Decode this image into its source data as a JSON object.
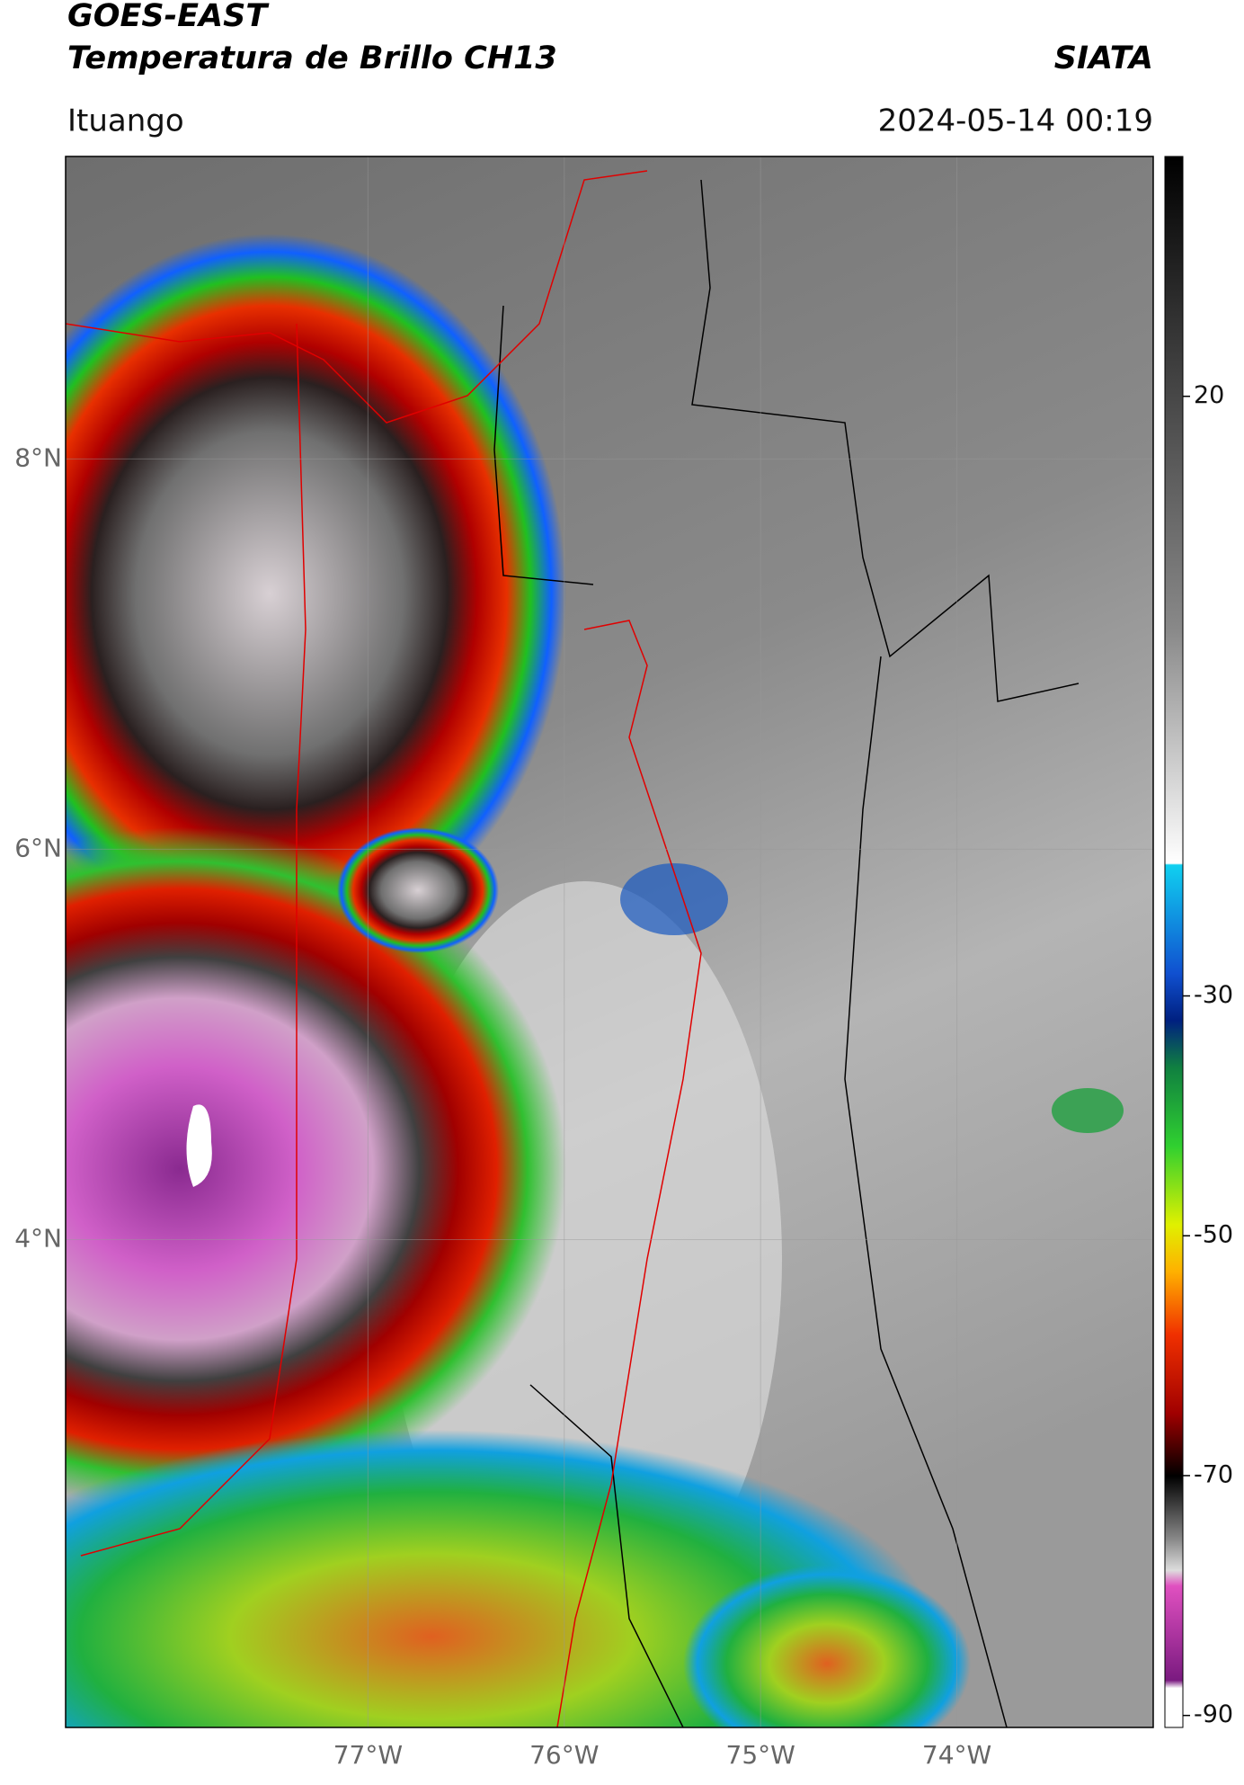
{
  "header": {
    "title_line1": "GOES-EAST",
    "title_line2": "Temperatura de Brillo CH13",
    "agency": "SIATA",
    "location": "Ituango",
    "timestamp": "2024-05-14 00:19"
  },
  "map": {
    "lonlim": [
      -78.54,
      -73.0
    ],
    "latlim": [
      1.5,
      9.55
    ],
    "lon_ticks": [
      {
        "value": -77,
        "label": "77°W"
      },
      {
        "value": -76,
        "label": "76°W"
      },
      {
        "value": -75,
        "label": "75°W"
      },
      {
        "value": -74,
        "label": "74°W"
      }
    ],
    "lat_ticks": [
      {
        "value": 8,
        "label": "8°N"
      },
      {
        "value": 6,
        "label": "6°N"
      },
      {
        "value": 4,
        "label": "4°N"
      }
    ],
    "grid": true
  },
  "colorbar": {
    "range": [
      -91,
      40
    ],
    "ticks": [
      20,
      -30,
      -50,
      -70,
      -90
    ]
  }
}
